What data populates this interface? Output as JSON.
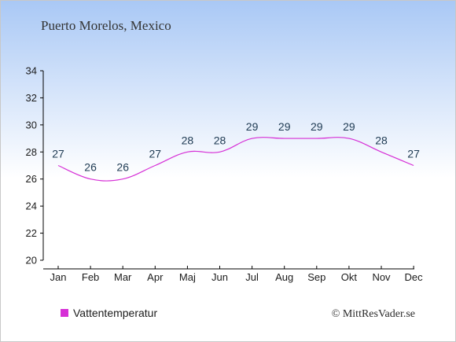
{
  "chart_data": {
    "type": "line",
    "title": "Puerto Morelos, Mexico",
    "categories": [
      "Jan",
      "Feb",
      "Mar",
      "Apr",
      "Maj",
      "Jun",
      "Jul",
      "Aug",
      "Sep",
      "Okt",
      "Nov",
      "Dec"
    ],
    "series": [
      {
        "name": "Vattentemperatur",
        "values": [
          27,
          26,
          26,
          27,
          28,
          28,
          29,
          29,
          29,
          29,
          28,
          27
        ],
        "color": "#d62fd6"
      }
    ],
    "ylim": [
      20,
      34
    ],
    "yticks": [
      20,
      22,
      24,
      26,
      28,
      30,
      32,
      34
    ],
    "grid": false,
    "legend_position": "bottom-left",
    "background_gradient": [
      "#a9c8f5",
      "#ffffff"
    ]
  },
  "credit": "© MittResVader.se"
}
